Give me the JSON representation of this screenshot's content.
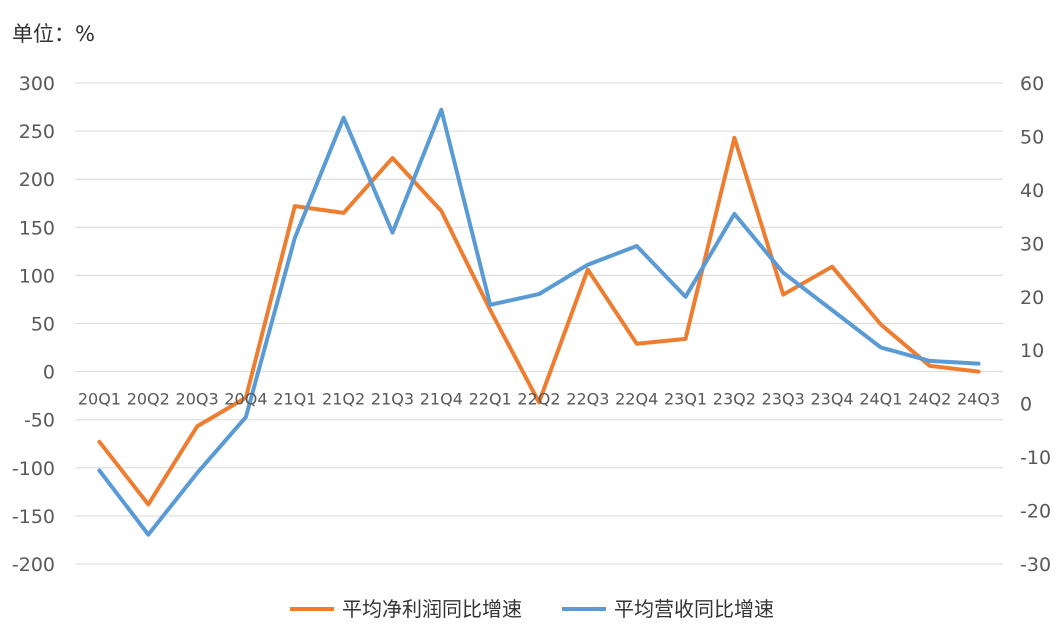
{
  "unit_label": "单位：%",
  "chart_data": {
    "type": "line",
    "categories": [
      "20Q1",
      "20Q2",
      "20Q3",
      "20Q4",
      "21Q1",
      "21Q2",
      "21Q3",
      "21Q4",
      "22Q1",
      "22Q2",
      "22Q3",
      "22Q4",
      "23Q1",
      "23Q2",
      "23Q3",
      "23Q4",
      "24Q1",
      "24Q2",
      "24Q3"
    ],
    "y_left": {
      "ylim": [
        -200,
        300
      ],
      "ticks": [
        300,
        250,
        200,
        150,
        100,
        50,
        0,
        -50,
        -100,
        -150,
        -200
      ]
    },
    "y_right": {
      "ylim": [
        -30,
        60
      ],
      "ticks": [
        60,
        50,
        40,
        30,
        20,
        10,
        0,
        -10,
        -20,
        -30
      ]
    },
    "series": [
      {
        "name": "平均净利润同比增速",
        "axis": "left",
        "color": "#ED7D31",
        "values": [
          -73,
          -138,
          -57,
          -27,
          172,
          165,
          222,
          167,
          64,
          -32,
          106,
          29,
          34,
          243,
          80,
          109,
          49,
          6,
          0
        ]
      },
      {
        "name": "平均营收同比增速",
        "axis": "right",
        "color": "#5B9BD5",
        "values": [
          -12.5,
          -24.5,
          -13,
          -2.5,
          31,
          53.5,
          32,
          55,
          18.5,
          20.5,
          26,
          29.5,
          20,
          35.5,
          24.5,
          17.5,
          10.5,
          8,
          7.5
        ]
      }
    ],
    "grid": true,
    "legend_position": "bottom"
  }
}
